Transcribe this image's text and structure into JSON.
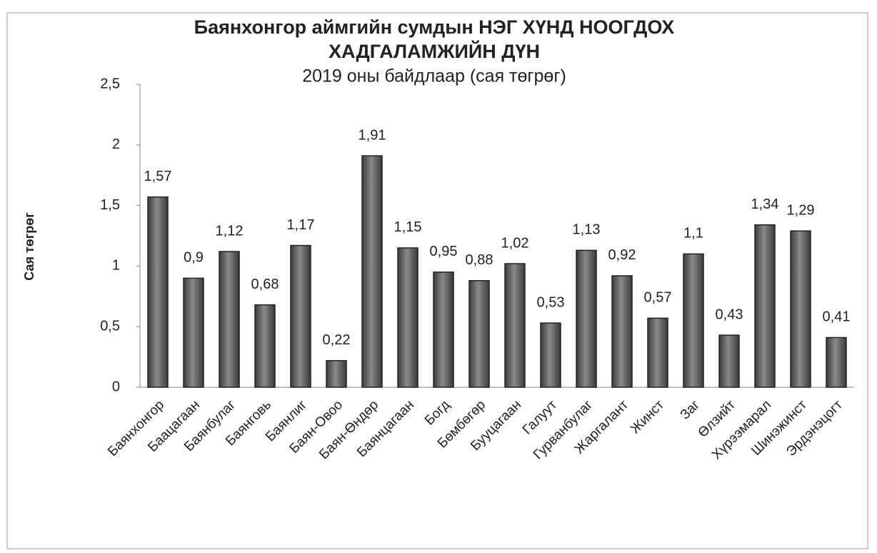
{
  "chart_data": {
    "type": "bar",
    "title": [
      "Баянхонгор аймгийн сумдын НЭГ ХҮНД НООГДОХ",
      "ХАДГАЛАМЖИЙН ДҮН"
    ],
    "subtitle": "2019 оны байдлаар (сая төгрөг)",
    "y_label": "Сая төгрөг",
    "categories": [
      "Баянхонгор",
      "Баацагаан",
      "Баянбулаг",
      "Баянговь",
      "Баянлиг",
      "Баян-Овоо",
      "Баян-Өндөр",
      "Баянцагаан",
      "Богд",
      "Бөмбөгөр",
      "Бууцагаан",
      "Галуут",
      "Гурванбулаг",
      "Жаргалант",
      "Жинст",
      "Заг",
      "Өлзийт",
      "Хүрээмарал",
      "Шинэжинст",
      "Эрдэнэцогт"
    ],
    "values": [
      1.57,
      0.9,
      1.12,
      0.68,
      1.17,
      0.22,
      1.91,
      1.15,
      0.95,
      0.88,
      1.02,
      0.53,
      1.13,
      0.92,
      0.57,
      1.1,
      0.43,
      1.34,
      1.29,
      0.41
    ],
    "value_labels": [
      "1,57",
      "0,9",
      "1,12",
      "0,68",
      "1,17",
      "0,22",
      "1,91",
      "1,15",
      "0,95",
      "0,88",
      "1,02",
      "0,53",
      "1,13",
      "0,92",
      "0,57",
      "1,1",
      "0,43",
      "1,34",
      "1,29",
      "0,41"
    ],
    "color": "#6b6b6b",
    "ylim": [
      0,
      2.5
    ],
    "yticks": [
      0,
      {
        "value": 0.5,
        "label": "0,5"
      },
      1,
      {
        "value": 1.5,
        "label": "1,5"
      },
      2,
      {
        "value": 2.5,
        "label": "2,5"
      }
    ],
    "grid": false
  }
}
